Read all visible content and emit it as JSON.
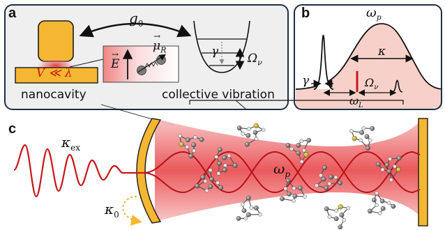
{
  "panel_a": {
    "letter": "a",
    "coupling_label": "g",
    "coupling_sub": "0",
    "gap_label": "V ≪ λ",
    "field_label": "E",
    "dipole_label": "μ",
    "dipole_sub": "R",
    "damping_label": "γ",
    "vib_freq_label": "Ω",
    "vib_freq_sub": "ν",
    "caption_left": "nanocavity",
    "caption_right": "collective vibration"
  },
  "panel_b": {
    "letter": "b",
    "plasmon_label": "ω",
    "plasmon_sub": "p",
    "kappa_label": "κ",
    "gamma_label": "γ",
    "vib_freq_label": "Ω",
    "vib_freq_sub": "ν",
    "laser_label": "ω",
    "laser_sub": "L"
  },
  "panel_c": {
    "letter": "c",
    "kappa_ex_label": "κ",
    "kappa_ex_sub": "ex",
    "kappa_0_label": "κ",
    "kappa_0_sub": "0",
    "mode_label": "ω",
    "mode_sub": "p"
  },
  "colors": {
    "panel_bg": "#efefef",
    "panel_border": "#1c2e44",
    "gold": "#f5b731",
    "gold_dark": "#c98e10",
    "red": "#c8161d",
    "pink": "#f7cfc6",
    "beam": "#ef5d5d"
  }
}
